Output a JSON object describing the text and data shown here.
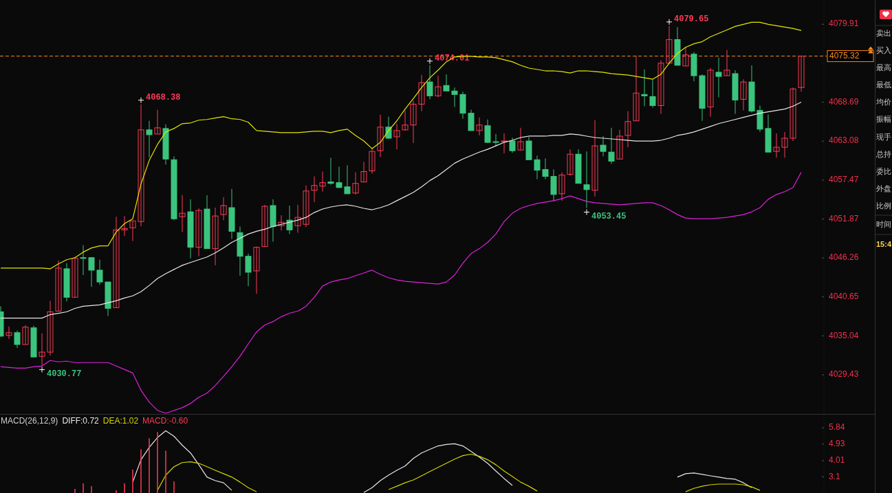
{
  "chart_data": [
    {
      "type": "candlestick",
      "categories": [
        null,
        null,
        null,
        null,
        null,
        null,
        null,
        null,
        null,
        null,
        null,
        null,
        null,
        null,
        null,
        null,
        null,
        null,
        null,
        null,
        null,
        null,
        null,
        null,
        null,
        null,
        null,
        null,
        null,
        null,
        null,
        null,
        null,
        null,
        null,
        null,
        null,
        null,
        null,
        null,
        null,
        null,
        null,
        null,
        null,
        null,
        null,
        null,
        null,
        null,
        null,
        null,
        null,
        null,
        null,
        null,
        null,
        null,
        null,
        null,
        null,
        null,
        null,
        null,
        null,
        null,
        null,
        null,
        null,
        null,
        null,
        null,
        null,
        null,
        null,
        null,
        null,
        null,
        null,
        null,
        null,
        null,
        null,
        null,
        null,
        null,
        null,
        null,
        null,
        null,
        null,
        null,
        null,
        null,
        null,
        null,
        null,
        null
      ],
      "ohlc": [
        [
          4038.5,
          4039.3,
          4034.9,
          4035.0
        ],
        [
          4035.1,
          4036.4,
          4034.6,
          4035.5
        ],
        [
          4035.5,
          4035.8,
          4033.3,
          4033.8
        ],
        [
          4033.8,
          4036.6,
          4033.8,
          4036.3
        ],
        [
          4036.2,
          4036.5,
          4032.0,
          4032.0
        ],
        [
          4032.1,
          4035.4,
          4030.77,
          4032.7
        ],
        [
          4032.7,
          4040.1,
          4032.2,
          4038.5
        ],
        [
          4038.6,
          4045.9,
          4038.6,
          4044.8
        ],
        [
          4044.7,
          4045.5,
          4040.0,
          4040.6
        ],
        [
          4040.6,
          4046.4,
          4040.6,
          4046.2
        ],
        [
          4046.3,
          4048.1,
          4043.8,
          4046.2
        ],
        [
          4046.3,
          4046.4,
          4042.1,
          4044.5
        ],
        [
          4044.5,
          4046.0,
          4042.4,
          4042.8
        ],
        [
          4042.8,
          4042.8,
          4037.9,
          4039.0
        ],
        [
          4039.1,
          4052.2,
          4039.1,
          4050.3
        ],
        [
          4050.3,
          4052.3,
          4049.4,
          4050.5
        ],
        [
          4050.6,
          4051.6,
          4048.7,
          4051.6
        ],
        [
          4051.5,
          4068.38,
          4050.8,
          4064.7
        ],
        [
          4064.7,
          4066.0,
          4060.7,
          4064.0
        ],
        [
          4064.1,
          4067.6,
          4064.1,
          4065.0
        ],
        [
          4064.9,
          4065.5,
          4059.7,
          4060.5
        ],
        [
          4060.4,
          4060.9,
          4051.7,
          4051.9
        ],
        [
          4052.2,
          4055.3,
          4050.0,
          4052.7
        ],
        [
          4052.9,
          4054.7,
          4046.2,
          4047.8
        ],
        [
          4047.8,
          4053.4,
          4046.5,
          4053.1
        ],
        [
          4053.3,
          4055.3,
          4047.6,
          4047.6
        ],
        [
          4047.6,
          4053.5,
          4045.2,
          4052.3
        ],
        [
          4052.5,
          4055.0,
          4051.7,
          4053.8
        ],
        [
          4053.5,
          4056.2,
          4049.0,
          4050.1
        ],
        [
          4049.9,
          4050.8,
          4043.7,
          4046.5
        ],
        [
          4046.5,
          4046.9,
          4042.2,
          4044.2
        ],
        [
          4044.4,
          4047.9,
          4041.1,
          4047.8
        ],
        [
          4047.9,
          4053.9,
          4047.9,
          4053.7
        ],
        [
          4053.8,
          4054.7,
          4048.6,
          4050.8
        ],
        [
          4050.9,
          4052.4,
          4050.2,
          4051.4
        ],
        [
          4051.7,
          4053.8,
          4049.7,
          4050.3
        ],
        [
          4050.9,
          4053.9,
          4049.9,
          4052.1
        ],
        [
          4051.1,
          4056.7,
          4050.7,
          4055.9
        ],
        [
          4056.0,
          4058.0,
          4054.3,
          4056.7
        ],
        [
          4056.6,
          4058.7,
          4055.8,
          4057.1
        ],
        [
          4057.2,
          4060.7,
          4056.8,
          4057.0
        ],
        [
          4057.1,
          4059.4,
          4056.3,
          4056.4
        ],
        [
          4056.5,
          4059.6,
          4055.5,
          4055.5
        ],
        [
          4055.6,
          4058.6,
          4055.4,
          4057.0
        ],
        [
          4057.2,
          4060.1,
          4057.2,
          4058.7
        ],
        [
          4058.8,
          4062.0,
          4058.4,
          4061.6
        ],
        [
          4061.7,
          4066.9,
          4060.8,
          4065.1
        ],
        [
          4065.1,
          4066.6,
          4063.4,
          4063.5
        ],
        [
          4063.7,
          4065.6,
          4061.9,
          4064.6
        ],
        [
          4064.7,
          4067.5,
          4064.6,
          4065.4
        ],
        [
          4065.4,
          4068.9,
          4062.8,
          4068.4
        ],
        [
          4068.4,
          4072.6,
          4067.4,
          4071.5
        ],
        [
          4071.6,
          4074.01,
          4069.1,
          4069.6
        ],
        [
          4069.6,
          4072.5,
          4069.4,
          4070.9
        ],
        [
          4071.1,
          4072.7,
          4070.3,
          4070.3
        ],
        [
          4070.3,
          4070.8,
          4068.0,
          4069.8
        ],
        [
          4069.8,
          4070.2,
          4066.3,
          4067.1
        ],
        [
          4067.1,
          4067.6,
          4064.6,
          4064.6
        ],
        [
          4064.6,
          4066.5,
          4063.9,
          4065.4
        ],
        [
          4065.3,
          4066.2,
          4062.8,
          4062.9
        ],
        [
          4063.0,
          4064.1,
          4062.4,
          4062.9
        ],
        [
          4063.0,
          4064.2,
          4061.3,
          4063.1
        ],
        [
          4063.1,
          4063.6,
          4061.4,
          4061.7
        ],
        [
          4061.8,
          4065.0,
          4061.8,
          4063.0
        ],
        [
          4063.1,
          4063.7,
          4060.4,
          4060.4
        ],
        [
          4060.4,
          4061.0,
          4057.6,
          4058.9
        ],
        [
          4059.0,
          4060.6,
          4057.6,
          4058.0
        ],
        [
          4058.0,
          4059.0,
          4054.4,
          4055.4
        ],
        [
          4055.5,
          4058.6,
          4054.5,
          4058.2
        ],
        [
          4058.3,
          4061.9,
          4058.1,
          4061.2
        ],
        [
          4061.2,
          4061.9,
          4057.0,
          4057.0
        ],
        [
          4056.8,
          4061.6,
          4053.45,
          4056.1
        ],
        [
          4056.0,
          4066.1,
          4055.1,
          4062.4
        ],
        [
          4062.5,
          4063.8,
          4060.9,
          4061.6
        ],
        [
          4061.5,
          4065.0,
          4059.8,
          4060.2
        ],
        [
          4060.5,
          4064.7,
          4060.5,
          4063.8
        ],
        [
          4063.9,
          4067.4,
          4062.2,
          4065.9
        ],
        [
          4066.0,
          4075.4,
          4066.0,
          4070.0
        ],
        [
          4069.8,
          4073.4,
          4068.1,
          4069.6
        ],
        [
          4069.5,
          4071.9,
          4067.9,
          4068.2
        ],
        [
          4068.2,
          4074.7,
          4067.0,
          4074.3
        ],
        [
          4074.3,
          4079.65,
          4074.3,
          4077.7
        ],
        [
          4077.7,
          4079.5,
          4074.0,
          4074.0
        ],
        [
          4073.9,
          4076.6,
          4073.9,
          4075.5
        ],
        [
          4075.6,
          4075.9,
          4071.7,
          4072.5
        ],
        [
          4072.5,
          4072.7,
          4066.0,
          4067.8
        ],
        [
          4068.0,
          4073.6,
          4066.6,
          4073.3
        ],
        [
          4073.0,
          4075.1,
          4069.4,
          4072.4
        ],
        [
          4072.5,
          4076.2,
          4072.5,
          4073.3
        ],
        [
          4072.8,
          4073.3,
          4067.0,
          4069.0
        ],
        [
          4069.1,
          4072.0,
          4067.5,
          4071.6
        ],
        [
          4071.6,
          4074.0,
          4067.2,
          4067.4
        ],
        [
          4067.5,
          4068.2,
          4064.4,
          4064.8
        ],
        [
          4064.9,
          4066.9,
          4061.5,
          4061.5
        ],
        [
          4061.6,
          4064.2,
          4060.7,
          4062.2
        ],
        [
          4062.2,
          4064.4,
          4060.7,
          4063.5
        ],
        [
          4063.5,
          4070.8,
          4063.1,
          4070.6
        ],
        [
          4070.8,
          4075.4,
          4070.2,
          4075.32
        ]
      ],
      "colors": [
        "#3ac47d",
        "#ff3b57",
        "#3ac47d",
        "#ff3b57",
        "#3ac47d",
        "#ff3b57",
        "#ff3b57",
        "#ff3b57",
        "#3ac47d",
        "#ff3b57",
        "#3ac47d",
        "#3ac47d",
        "#3ac47d",
        "#3ac47d",
        "#ff3b57",
        "#ff3b57",
        "#ff3b57",
        "#ff3b57",
        "#3ac47d",
        "#ff3b57",
        "#3ac47d",
        "#3ac47d",
        "#ff3b57",
        "#3ac47d",
        "#ff3b57",
        "#3ac47d",
        "#ff3b57",
        "#ff3b57",
        "#3ac47d",
        "#3ac47d",
        "#3ac47d",
        "#ff3b57",
        "#ff3b57",
        "#3ac47d",
        "#ff3b57",
        "#3ac47d",
        "#ff3b57",
        "#ff3b57",
        "#ff3b57",
        "#ff3b57",
        "#3ac47d",
        "#3ac47d",
        "#3ac47d",
        "#ff3b57",
        "#ff3b57",
        "#ff3b57",
        "#ff3b57",
        "#3ac47d",
        "#ff3b57",
        "#ff3b57",
        "#ff3b57",
        "#ff3b57",
        "#3ac47d",
        "#ff3b57",
        "#3ac47d",
        "#3ac47d",
        "#3ac47d",
        "#3ac47d",
        "#ff3b57",
        "#3ac47d",
        "#3ac47d",
        "#ff3b57",
        "#3ac47d",
        "#ff3b57",
        "#3ac47d",
        "#3ac47d",
        "#3ac47d",
        "#3ac47d",
        "#ff3b57",
        "#ff3b57",
        "#3ac47d",
        "#3ac47d",
        "#ff3b57",
        "#3ac47d",
        "#3ac47d",
        "#ff3b57",
        "#ff3b57",
        "#ff3b57",
        "#3ac47d",
        "#3ac47d",
        "#ff3b57",
        "#ff3b57",
        "#3ac47d",
        "#ff3b57",
        "#3ac47d",
        "#3ac47d",
        "#ff3b57",
        "#3ac47d",
        "#ff3b57",
        "#3ac47d",
        "#ff3b57",
        "#3ac47d",
        "#3ac47d",
        "#3ac47d",
        "#ff3b57",
        "#ff3b57",
        "#ff3b57",
        "#ff3b57"
      ],
      "series": [
        {
          "type": "line",
          "color": "#e6e600",
          "values": [
            4044.8,
            4044.8,
            4044.8,
            4044.8,
            4044.8,
            4044.8,
            4044.7,
            4045.4,
            4046.0,
            4046.3,
            4047.1,
            4047.7,
            4048.0,
            4048.0,
            4050.0,
            4051.2,
            4051.9,
            4056.9,
            4060.3,
            4062.6,
            4064.4,
            4064.9,
            4065.6,
            4065.7,
            4066.1,
            4066.2,
            4066.4,
            4066.6,
            4066.3,
            4066.2,
            4065.8,
            4064.6,
            4064.5,
            4064.4,
            4064.3,
            4064.3,
            4064.3,
            4064.4,
            4064.5,
            4064.5,
            4064.3,
            4064.6,
            4064.8,
            4063.9,
            4063.1,
            4062.0,
            4062.9,
            4064.6,
            4066.0,
            4067.7,
            4069.2,
            4070.8,
            4072.2,
            4073.3,
            4074.5,
            4075.2,
            4075.3,
            4075.3,
            4075.2,
            4075.2,
            4075.1,
            4074.8,
            4074.5,
            4074.0,
            4073.6,
            4073.4,
            4073.2,
            4073.2,
            4073.1,
            4072.9,
            4073.2,
            4073.2,
            4073.1,
            4073.0,
            4072.8,
            4072.7,
            4072.6,
            4072.4,
            4072.2,
            4072.0,
            4072.7,
            4074.3,
            4075.7,
            4076.6,
            4077.1,
            4077.4,
            4078.1,
            4078.6,
            4079.1,
            4079.6,
            4079.9,
            4080.2,
            4080.2,
            4079.9,
            4079.7,
            4079.5,
            4079.3,
            4079.0
          ]
        },
        {
          "type": "line",
          "color": "#e8e8e8",
          "values": [
            4037.6,
            4037.6,
            4037.6,
            4037.6,
            4037.6,
            4037.6,
            4038.1,
            4038.3,
            4038.5,
            4039.0,
            4039.3,
            4039.4,
            4039.5,
            4039.8,
            4040.1,
            4040.5,
            4040.8,
            4041.4,
            4042.3,
            4043.3,
            4044.0,
            4044.6,
            4045.2,
            4045.6,
            4046.0,
            4046.4,
            4047.0,
            4047.7,
            4048.5,
            4049.1,
            4049.7,
            4050.1,
            4050.4,
            4050.8,
            4051.1,
            4051.4,
            4051.7,
            4052.1,
            4052.8,
            4053.3,
            4053.6,
            4053.8,
            4053.9,
            4053.7,
            4053.4,
            4053.2,
            4053.5,
            4053.9,
            4054.5,
            4055.1,
            4055.7,
            4056.5,
            4057.4,
            4058.1,
            4059.0,
            4059.9,
            4060.5,
            4061.0,
            4061.5,
            4061.9,
            4062.4,
            4062.9,
            4063.2,
            4063.6,
            4063.8,
            4063.8,
            4063.8,
            4063.9,
            4063.9,
            4064.1,
            4064.0,
            4063.8,
            4063.6,
            4063.5,
            4063.4,
            4063.3,
            4063.2,
            4063.1,
            4063.1,
            4063.1,
            4063.2,
            4063.5,
            4063.9,
            4064.1,
            4064.4,
            4064.8,
            4065.2,
            4065.6,
            4065.9,
            4066.2,
            4066.5,
            4066.8,
            4067.1,
            4067.3,
            4067.5,
            4067.7,
            4068.1,
            4068.7
          ]
        },
        {
          "type": "line",
          "color": "#e020e0",
          "values": [
            4030.6,
            4030.5,
            4030.4,
            4030.4,
            4030.6,
            4030.7,
            4031.5,
            4031.3,
            4031.4,
            4031.2,
            4031.2,
            4031.2,
            4031.2,
            4031.2,
            4030.7,
            4030.2,
            4029.7,
            4027.2,
            4025.5,
            4024.3,
            4023.9,
            4024.3,
            4024.7,
            4025.3,
            4026.2,
            4026.8,
            4027.9,
            4029.2,
            4030.6,
            4032.1,
            4033.9,
            4035.6,
            4036.6,
            4037.1,
            4037.8,
            4038.3,
            4038.6,
            4039.3,
            4040.6,
            4042.2,
            4042.8,
            4043.1,
            4043.3,
            4043.7,
            4044.1,
            4044.5,
            4043.9,
            4043.4,
            4043.1,
            4042.9,
            4042.8,
            4042.7,
            4042.6,
            4042.5,
            4042.8,
            4043.8,
            4045.5,
            4046.9,
            4047.6,
            4048.5,
            4049.7,
            4051.5,
            4052.7,
            4053.4,
            4053.8,
            4054.1,
            4054.3,
            4054.5,
            4054.8,
            4055.2,
            4054.8,
            4054.4,
            4054.2,
            4054.1,
            4054.0,
            4053.9,
            4054.0,
            4054.1,
            4054.2,
            4054.2,
            4053.8,
            4053.2,
            4052.5,
            4052.0,
            4051.9,
            4051.9,
            4051.9,
            4052.0,
            4052.1,
            4052.3,
            4052.5,
            4052.9,
            4053.5,
            4054.7,
            4055.4,
            4055.8,
            4056.4,
            4058.6
          ]
        }
      ],
      "ylim": [
        4023.8,
        4083.4
      ],
      "yticks": [
        4079.91,
        4068.69,
        4063.08,
        4057.47,
        4051.87,
        4046.26,
        4040.65,
        4035.04,
        4029.43
      ],
      "ref_lines": [
        {
          "axis": "y",
          "value": 4075.32,
          "label": "4075.32",
          "color": "#ff8c1a",
          "line_style": "dashed"
        }
      ],
      "annotations": [
        "4068.38",
        "4074.01",
        "4079.65",
        "4030.77",
        "4053.45"
      ]
    },
    {
      "type": "line",
      "title": "MACD(26,12,9)",
      "legend": "top left",
      "categories": [
        null,
        null,
        null,
        null,
        null,
        null,
        null,
        null,
        null,
        null,
        null,
        null,
        null,
        null,
        null,
        null,
        null,
        null,
        null,
        null,
        null,
        null,
        null,
        null,
        null,
        null,
        null,
        null,
        null,
        null,
        null,
        null,
        null,
        null,
        null,
        null,
        null,
        null,
        null,
        null,
        null,
        null,
        null,
        null,
        null,
        null,
        null,
        null,
        null,
        null,
        null,
        null,
        null,
        null,
        null,
        null,
        null,
        null,
        null,
        null,
        null,
        null,
        null,
        null,
        null,
        null,
        null,
        null,
        null,
        null,
        null,
        null,
        null,
        null,
        null,
        null,
        null,
        null,
        null,
        null,
        null,
        null,
        null,
        null,
        null,
        null,
        null,
        null,
        null,
        null,
        null,
        null,
        null,
        null,
        null,
        null,
        null,
        null
      ],
      "series": [
        {
          "name": "DIFF:0.72",
          "color": "#e8e8e8",
          "values": [
            null,
            null,
            null,
            null,
            null,
            null,
            null,
            null,
            null,
            null,
            null,
            null,
            null,
            null,
            null,
            null,
            2.81,
            4.06,
            4.75,
            5.3,
            5.68,
            5.37,
            4.87,
            4.44,
            3.78,
            3.09,
            2.89,
            2.77,
            2.35,
            null,
            null,
            null,
            null,
            null,
            null,
            null,
            null,
            null,
            null,
            null,
            null,
            null,
            null,
            null,
            2.23,
            2.5,
            2.89,
            3.2,
            3.47,
            3.71,
            4.13,
            4.44,
            4.64,
            4.83,
            4.91,
            4.95,
            4.83,
            4.52,
            4.21,
            3.86,
            3.43,
            3.01,
            2.62,
            null,
            null,
            null,
            null,
            null,
            null,
            null,
            null,
            null,
            null,
            null,
            null,
            null,
            null,
            null,
            null,
            null,
            null,
            null,
            3.09,
            3.28,
            3.32,
            3.24,
            3.16,
            3.09,
            3.01,
            2.97,
            2.77,
            2.5,
            null,
            null,
            null,
            null,
            null,
            null
          ]
        },
        {
          "name": "DEA:1.02",
          "color": "#d4d400",
          "values": [
            null,
            null,
            null,
            null,
            null,
            null,
            null,
            null,
            null,
            null,
            null,
            null,
            null,
            null,
            null,
            null,
            null,
            null,
            null,
            2.35,
            3.2,
            3.67,
            3.9,
            3.94,
            3.86,
            3.67,
            3.47,
            3.28,
            3.09,
            2.81,
            2.5,
            2.27,
            null,
            null,
            null,
            null,
            null,
            null,
            null,
            null,
            null,
            null,
            null,
            null,
            null,
            null,
            null,
            2.39,
            2.58,
            2.77,
            2.93,
            3.16,
            3.4,
            3.63,
            3.86,
            4.09,
            4.29,
            4.37,
            4.25,
            4.06,
            3.78,
            3.43,
            3.12,
            2.81,
            2.58,
            2.31,
            null,
            null,
            null,
            null,
            null,
            null,
            null,
            null,
            null,
            null,
            null,
            null,
            null,
            null,
            null,
            null,
            null,
            2.27,
            2.46,
            2.58,
            2.66,
            2.7,
            2.7,
            2.7,
            2.66,
            2.54,
            2.35,
            null,
            null,
            null,
            null,
            null
          ]
        },
        {
          "name": "MACD:-0.60",
          "type": "bar",
          "color": "#ff3b57",
          "values": [
            null,
            null,
            null,
            null,
            null,
            null,
            null,
            null,
            null,
            2.43,
            2.74,
            2.58,
            null,
            null,
            2.35,
            2.74,
            3.51,
            4.64,
            5.26,
            5.61,
            4.56,
            2.85,
            null,
            null,
            null,
            null,
            null,
            null,
            null,
            null,
            null,
            null,
            null,
            null,
            null,
            null,
            null,
            null,
            null,
            null,
            null,
            null,
            null,
            null,
            null,
            null,
            null,
            null,
            null,
            null,
            null,
            null,
            null,
            null,
            null,
            null,
            null,
            null,
            null,
            null,
            null,
            null,
            null,
            null,
            null,
            null,
            null,
            null,
            null,
            null,
            null,
            null,
            null,
            null,
            null,
            null,
            null,
            null,
            null,
            null,
            null,
            null,
            null,
            null,
            null,
            null,
            null,
            null,
            null,
            null,
            null,
            null,
            null,
            null,
            null,
            null,
            null,
            null
          ]
        }
      ],
      "ylim": [
        2.2,
        6.58
      ],
      "yticks": [
        5.84,
        4.93,
        4.01,
        3.1
      ]
    },
    {
      "type": "other",
      "annotations": [
        "卖出",
        "买入",
        "最高",
        "最低",
        "均价",
        "振幅",
        "现手",
        "总持",
        "委比",
        "外盘",
        "比例",
        "时间",
        "15:4"
      ]
    }
  ]
}
